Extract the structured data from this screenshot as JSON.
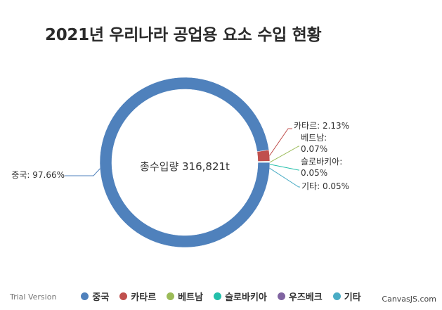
{
  "title": "2021년 우리나라 공업용 요소 수입 현황",
  "watermark": "Trial Version",
  "credit": "CanvasJS.com",
  "chart_data": {
    "type": "doughnut",
    "title": "2021년 우리나라 공업용 요소 수입 현황",
    "center_label": "총수입량 316,821t",
    "legend_position": "bottom",
    "slices": [
      {
        "name": "중국",
        "value": 97.66,
        "label": "중국: 97.66%",
        "color": "#4f81bc"
      },
      {
        "name": "카타르",
        "value": 2.13,
        "label": "카타르: 2.13%",
        "color": "#c0504e"
      },
      {
        "name": "베트남",
        "value": 0.07,
        "label": "베트남: 0.07%",
        "color": "#9bbb58"
      },
      {
        "name": "슬로바키아",
        "value": 0.05,
        "label": "슬로바키아: 0.05%",
        "color": "#23bfaa"
      },
      {
        "name": "우즈베크",
        "value": 0.04,
        "label": "",
        "color": "#8064a1"
      },
      {
        "name": "기타",
        "value": 0.05,
        "label": "기타: 0.05%",
        "color": "#4aacc5"
      }
    ]
  }
}
